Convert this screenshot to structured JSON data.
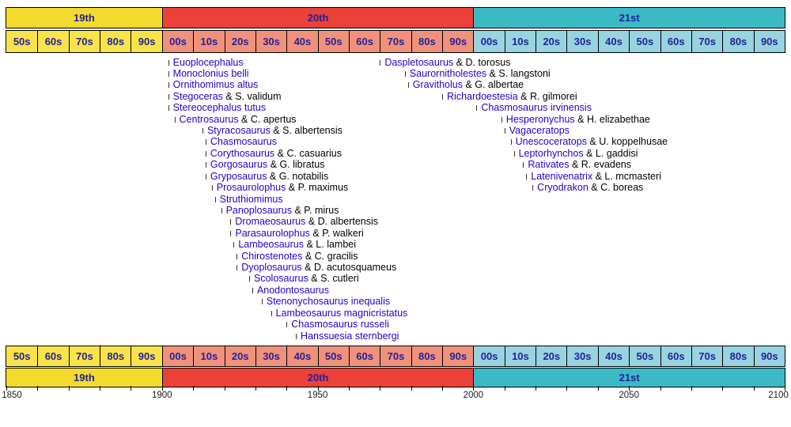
{
  "colors": {
    "background": "#FFFFFF",
    "border": "#000000",
    "link": "#2200CC",
    "bar_label": "#232297",
    "species_text": "#000000",
    "event_tick": "#333333",
    "axis_text": "#1A1A1A"
  },
  "chart_data": {
    "type": "timeline",
    "title": "",
    "x_range": [
      1850,
      2100
    ],
    "axis_labels": [
      "1850",
      "1900",
      "1950",
      "2000",
      "2050",
      "2100"
    ],
    "minor_tick_step_years": 10,
    "grid": false,
    "centuries": [
      {
        "label": "19th",
        "start": 1850,
        "end": 1900,
        "bar_color": "#F3DB2D",
        "decade_color": "#F8E34A"
      },
      {
        "label": "20th",
        "start": 1900,
        "end": 2000,
        "bar_color": "#EC4139",
        "decade_color": "#F0917B"
      },
      {
        "label": "21st",
        "start": 2000,
        "end": 2100,
        "bar_color": "#3BBAC6",
        "decade_color": "#98D3E0"
      }
    ],
    "decades": [
      {
        "label": "50s",
        "century": 0
      },
      {
        "label": "60s",
        "century": 0
      },
      {
        "label": "70s",
        "century": 0
      },
      {
        "label": "80s",
        "century": 0
      },
      {
        "label": "90s",
        "century": 0
      },
      {
        "label": "00s",
        "century": 1
      },
      {
        "label": "10s",
        "century": 1
      },
      {
        "label": "20s",
        "century": 1
      },
      {
        "label": "30s",
        "century": 1
      },
      {
        "label": "40s",
        "century": 1
      },
      {
        "label": "50s",
        "century": 1
      },
      {
        "label": "60s",
        "century": 1
      },
      {
        "label": "70s",
        "century": 1
      },
      {
        "label": "80s",
        "century": 1
      },
      {
        "label": "90s",
        "century": 1
      },
      {
        "label": "00s",
        "century": 2
      },
      {
        "label": "10s",
        "century": 2
      },
      {
        "label": "20s",
        "century": 2
      },
      {
        "label": "30s",
        "century": 2
      },
      {
        "label": "40s",
        "century": 2
      },
      {
        "label": "50s",
        "century": 2
      },
      {
        "label": "60s",
        "century": 2
      },
      {
        "label": "70s",
        "century": 2
      },
      {
        "label": "80s",
        "century": 2
      },
      {
        "label": "90s",
        "century": 2
      }
    ],
    "series": [
      {
        "name": "left-column",
        "events": [
          {
            "label": "Euoplocephalus",
            "suffix": "",
            "year": 1902
          },
          {
            "label": "Monoclonius belli",
            "suffix": "",
            "year": 1902
          },
          {
            "label": "Ornithomimus altus",
            "suffix": "",
            "year": 1902
          },
          {
            "label": "Stegoceras",
            "suffix": " & S. validum",
            "year": 1902
          },
          {
            "label": "Stereocephalus tutus",
            "suffix": "",
            "year": 1902
          },
          {
            "label": "Centrosaurus",
            "suffix": " & C. apertus",
            "year": 1904
          },
          {
            "label": "Styracosaurus",
            "suffix": " & S. albertensis",
            "year": 1913
          },
          {
            "label": "Chasmosaurus",
            "suffix": "",
            "year": 1914
          },
          {
            "label": "Corythosaurus",
            "suffix": " & C. casuarius",
            "year": 1914
          },
          {
            "label": "Gorgosaurus",
            "suffix": " & G. libratus",
            "year": 1914
          },
          {
            "label": "Gryposaurus",
            "suffix": " & G. notabilis",
            "year": 1914
          },
          {
            "label": "Prosaurolophus",
            "suffix": " & P. maximus",
            "year": 1916
          },
          {
            "label": "Struthiomimus",
            "suffix": "",
            "year": 1917
          },
          {
            "label": "Panoplosaurus",
            "suffix": " & P. mirus",
            "year": 1919
          },
          {
            "label": "Dromaeosaurus",
            "suffix": " & D. albertensis",
            "year": 1922
          },
          {
            "label": "Parasaurolophus",
            "suffix": " & P. walkeri",
            "year": 1922
          },
          {
            "label": "Lambeosaurus",
            "suffix": " & L. lambei",
            "year": 1923
          },
          {
            "label": "Chirostenotes",
            "suffix": " & C. gracilis",
            "year": 1924
          },
          {
            "label": "Dyoplosaurus",
            "suffix": " & D. acutosquameus",
            "year": 1924
          },
          {
            "label": "Scolosaurus",
            "suffix": " & S. cutleri",
            "year": 1928
          },
          {
            "label": "Anodontosaurus",
            "suffix": "",
            "year": 1929
          },
          {
            "label": "Stenonychosaurus inequalis",
            "suffix": "",
            "year": 1932
          },
          {
            "label": "Lambeosaurus magnicristatus",
            "suffix": "",
            "year": 1935
          },
          {
            "label": "Chasmosaurus russeli",
            "suffix": "",
            "year": 1940
          },
          {
            "label": "Hanssuesia sternbergi",
            "suffix": "",
            "year": 1943
          }
        ]
      },
      {
        "name": "right-column",
        "events": [
          {
            "label": "Daspletosaurus",
            "suffix": " & D. torosus",
            "year": 1970
          },
          {
            "label": "Saurornitholestes",
            "suffix": " & S. langstoni",
            "year": 1978
          },
          {
            "label": "Gravitholus",
            "suffix": " & G. albertae",
            "year": 1979
          },
          {
            "label": "Richardoestesia",
            "suffix": " & R. gilmorei",
            "year": 1990
          },
          {
            "label": "Chasmosaurus irvinensis",
            "suffix": "",
            "year": 2001
          },
          {
            "label": "Hesperonychus",
            "suffix": " & H. elizabethae",
            "year": 2009
          },
          {
            "label": "Vagaceratops",
            "suffix": "",
            "year": 2010
          },
          {
            "label": "Unescoceratops",
            "suffix": " & U. koppelhusae",
            "year": 2012
          },
          {
            "label": "Leptorhynchos",
            "suffix": " & L. gaddisi",
            "year": 2013
          },
          {
            "label": "Rativates",
            "suffix": " & R. evadens",
            "year": 2016
          },
          {
            "label": "Latenivenatrix",
            "suffix": " & L. mcmasteri",
            "year": 2017
          },
          {
            "label": "Cryodrakon",
            "suffix": " & C. boreas",
            "year": 2019
          }
        ]
      }
    ]
  }
}
